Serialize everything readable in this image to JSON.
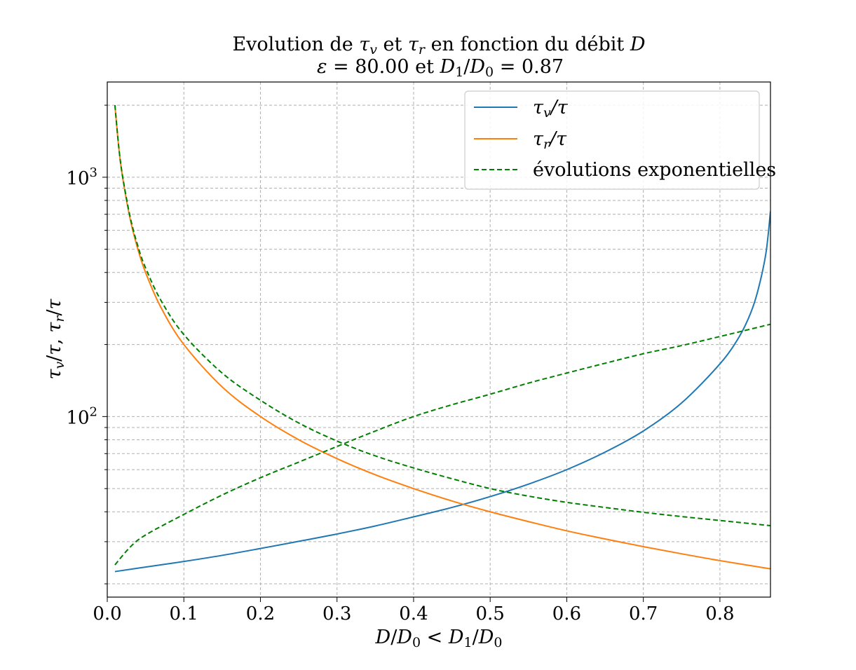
{
  "chart_data": {
    "type": "line",
    "title": {
      "line1": {
        "prefix": "Evolution de ",
        "var1": "τ",
        "sub1": "v",
        "mid": " et ",
        "var2": "τ",
        "sub2": "r",
        "suffix": " en fonction du débit ",
        "var3": "D"
      },
      "line2": {
        "eps": "ε",
        "eq1": " = ",
        "eps_value": "80.00",
        "and": " et ",
        "d1": "D",
        "d1sub": "1",
        "slash": "/",
        "d0": "D",
        "d0sub": "0",
        "eq2": " = ",
        "ratio": "0.87"
      }
    },
    "xlabel": {
      "a": "D",
      "b": "/",
      "c": "D",
      "c_sub": "0",
      "lt": " < ",
      "d": "D",
      "d_sub": "1",
      "e": "/",
      "f": "D",
      "f_sub": "0"
    },
    "ylabel": {
      "tv": "τ",
      "tv_sub": "v",
      "slash1": "/",
      "t1": "τ",
      "comma": ", ",
      "tr": "τ",
      "tr_sub": "r",
      "slash2": "/",
      "t2": "τ"
    },
    "x_ticks": [
      "0.0",
      "0.1",
      "0.2",
      "0.3",
      "0.4",
      "0.5",
      "0.6",
      "0.7",
      "0.8"
    ],
    "y_major_ticks": [
      {
        "value": 100,
        "base": "10",
        "exp": "2"
      },
      {
        "value": 1000,
        "base": "10",
        "exp": "3"
      }
    ],
    "y_minor_ticks": [
      20,
      30,
      40,
      50,
      60,
      70,
      80,
      90,
      200,
      300,
      400,
      500,
      600,
      700,
      800,
      900,
      2000
    ],
    "xlim": [
      0.0,
      0.866
    ],
    "ylim": [
      17.6,
      2500
    ],
    "y_scale": "log",
    "grid": true,
    "legend_position": "top-right",
    "legend": [
      {
        "label_var": "τ",
        "label_sub": "v",
        "label_rest": "/τ",
        "color": "#1f77b4",
        "style": "solid"
      },
      {
        "label_var": "τ",
        "label_sub": "r",
        "label_rest": "/τ",
        "color": "#ff7f0e",
        "style": "solid"
      },
      {
        "label_text": "évolutions exponentielles",
        "color": "#008000",
        "style": "dashed"
      }
    ],
    "series": [
      {
        "name": "τv/τ",
        "color": "#1f77b4",
        "style": "solid",
        "x": [
          0.01,
          0.05,
          0.1,
          0.15,
          0.2,
          0.25,
          0.3,
          0.35,
          0.4,
          0.45,
          0.5,
          0.55,
          0.6,
          0.65,
          0.7,
          0.75,
          0.8,
          0.825,
          0.84,
          0.85,
          0.86,
          0.866
        ],
        "y": [
          22.5,
          23.5,
          24.8,
          26.3,
          28.1,
          30.1,
          32.3,
          34.9,
          38.1,
          41.7,
          46.3,
          52.2,
          60.0,
          71.0,
          87.0,
          114.0,
          166.0,
          215.0,
          270.0,
          340.0,
          480.0,
          720.0
        ]
      },
      {
        "name": "τr/τ",
        "color": "#ff7f0e",
        "style": "solid",
        "x": [
          0.01,
          0.015,
          0.02,
          0.03,
          0.04,
          0.05,
          0.07,
          0.1,
          0.15,
          0.2,
          0.25,
          0.3,
          0.35,
          0.4,
          0.45,
          0.5,
          0.55,
          0.6,
          0.65,
          0.7,
          0.75,
          0.8,
          0.866
        ],
        "y": [
          2000,
          1333,
          1000,
          667,
          500,
          400,
          286,
          200,
          133,
          100,
          80,
          66.7,
          57.1,
          50,
          44.4,
          40,
          36.4,
          33.3,
          30.8,
          28.6,
          26.7,
          25,
          23.1
        ]
      },
      {
        "name": "évolutions exponentielles (τv)",
        "color": "#008000",
        "style": "dashed",
        "x": [
          0.01,
          0.03,
          0.05,
          0.1,
          0.15,
          0.2,
          0.25,
          0.3,
          0.35,
          0.4,
          0.45,
          0.5,
          0.55,
          0.6,
          0.65,
          0.7,
          0.75,
          0.8,
          0.866
        ],
        "y": [
          24.0,
          28.5,
          32.0,
          39.0,
          47.0,
          55.5,
          64.5,
          75.0,
          87.0,
          100.0,
          112.0,
          124.0,
          138.0,
          152.0,
          167.0,
          183.0,
          198.0,
          216.0,
          243.0
        ]
      },
      {
        "name": "évolutions exponentielles (τr)",
        "color": "#008000",
        "style": "dashed",
        "x": [
          0.01,
          0.015,
          0.02,
          0.03,
          0.04,
          0.05,
          0.07,
          0.1,
          0.15,
          0.2,
          0.25,
          0.3,
          0.35,
          0.4,
          0.45,
          0.5,
          0.55,
          0.6,
          0.65,
          0.7,
          0.75,
          0.8,
          0.866
        ],
        "y": [
          2000,
          1340,
          1010,
          680,
          515,
          418,
          306,
          220,
          152,
          117,
          94,
          79,
          68.5,
          61,
          55,
          50,
          46.5,
          43.8,
          41.7,
          39.8,
          38.2,
          36.8,
          35.0
        ]
      }
    ]
  }
}
